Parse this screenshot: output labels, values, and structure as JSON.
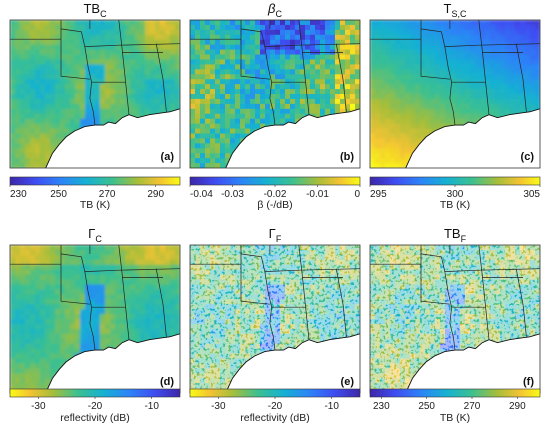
{
  "chart_data": [
    {
      "type": "heatmap",
      "title": "TB",
      "title_sub": "C",
      "panel_label": "(a)",
      "colorbar": {
        "min": 230,
        "max": 300,
        "ticks": [
          230,
          250,
          270,
          290
        ],
        "label": "TB (K)",
        "colormap": "parula"
      },
      "pattern": "tb_coarse"
    },
    {
      "type": "heatmap",
      "title": "β",
      "title_sub": "C",
      "panel_label": "(b)",
      "colorbar": {
        "min": -0.04,
        "max": 0,
        "ticks": [
          -0.04,
          -0.03,
          -0.02,
          -0.01,
          0
        ],
        "tick_labels": [
          "-0.04",
          "-0.03",
          "-0.02",
          "-0.01",
          "0"
        ],
        "label": "β (-/dB)",
        "colormap": "parula"
      },
      "pattern": "beta"
    },
    {
      "type": "heatmap",
      "title": "T",
      "title_sub": "S,C",
      "panel_label": "(c)",
      "colorbar": {
        "min": 295,
        "max": 305,
        "ticks": [
          295,
          300,
          305
        ],
        "label": "TB (K)",
        "colormap": "parula"
      },
      "pattern": "tsurf"
    },
    {
      "type": "heatmap",
      "title": "Γ",
      "title_sub": "C",
      "panel_label": "(d)",
      "colorbar": {
        "min": -35,
        "max": -5,
        "ticks": [
          -30,
          -20,
          -10
        ],
        "label": "reflectivity (dB)",
        "colormap": "parula_reversed"
      },
      "pattern": "gamma_coarse"
    },
    {
      "type": "heatmap",
      "title": "Γ",
      "title_sub": "F",
      "panel_label": "(e)",
      "colorbar": {
        "min": -35,
        "max": -5,
        "ticks": [
          -30,
          -20,
          -10
        ],
        "label": "reflectivity (dB)",
        "colormap": "parula_reversed"
      },
      "pattern": "gamma_fine"
    },
    {
      "type": "heatmap",
      "title": "TB",
      "title_sub": "F",
      "panel_label": "(f)",
      "colorbar": {
        "min": 225,
        "max": 300,
        "ticks": [
          230,
          250,
          270,
          290
        ],
        "label": "TB (K)",
        "colormap": "parula"
      },
      "pattern": "tb_fine"
    }
  ]
}
